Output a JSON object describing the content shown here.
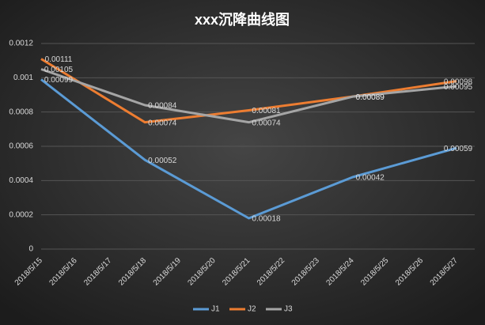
{
  "chart_data": {
    "type": "line",
    "title": "xxx沉降曲线图",
    "categories": [
      "2018/5/15",
      "2018/5/16",
      "2018/5/17",
      "2018/5/18",
      "2018/5/19",
      "2018/5/20",
      "2018/5/21",
      "2018/5/22",
      "2018/5/23",
      "2018/5/24",
      "2018/5/25",
      "2018/5/26",
      "2018/5/27"
    ],
    "series": [
      {
        "name": "J1",
        "color": "#5b9bd5",
        "x": [
          "2018/5/15",
          "2018/5/18",
          "2018/5/21",
          "2018/5/24",
          "2018/5/27"
        ],
        "values": [
          0.00099,
          0.00052,
          0.00018,
          0.00042,
          0.00059
        ]
      },
      {
        "name": "J2",
        "color": "#ed7d31",
        "x": [
          "2018/5/15",
          "2018/5/18",
          "2018/5/21",
          "2018/5/24",
          "2018/5/27"
        ],
        "values": [
          0.00111,
          0.00074,
          0.00081,
          0.00089,
          0.00098
        ]
      },
      {
        "name": "J3",
        "color": "#a5a5a5",
        "x": [
          "2018/5/15",
          "2018/5/18",
          "2018/5/21",
          "2018/5/24",
          "2018/5/27"
        ],
        "values": [
          0.00105,
          0.00084,
          0.00074,
          0.00089,
          0.00095
        ]
      }
    ],
    "ylim": [
      0,
      0.0012
    ],
    "yticks": [
      0,
      0.0002,
      0.0004,
      0.0006,
      0.0008,
      0.001,
      0.0012
    ],
    "grid": true,
    "legend": "bottom"
  }
}
